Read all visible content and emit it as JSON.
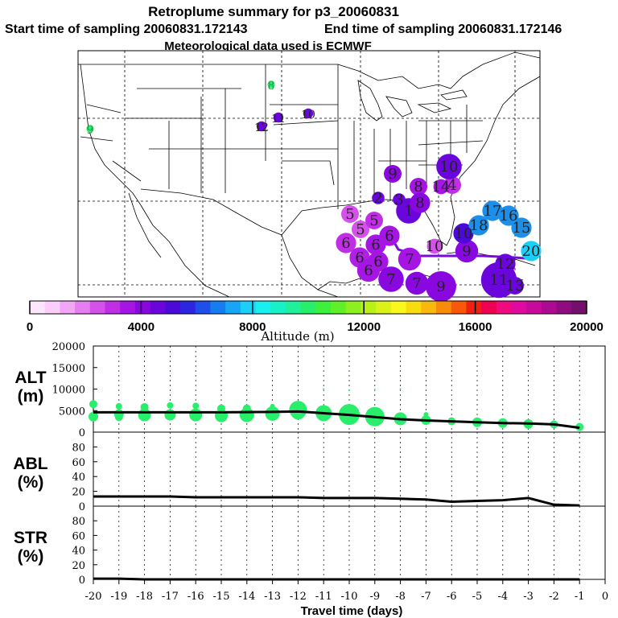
{
  "title": "Retroplume summary for p3_20060831",
  "subtitle_start": "Start time of sampling 20060831.172143",
  "subtitle_end": "End time of sampling 20060831.172146",
  "subtitle_met": "Meteorological data used is ECMWF",
  "colorbar": {
    "label": "Altitude (m)",
    "ticks": [
      "0",
      "4000",
      "8000",
      "12000",
      "16000",
      "20000"
    ],
    "colors": [
      "#ffe6ff",
      "#fccdfd",
      "#f2a6f6",
      "#e57ef0",
      "#d552ea",
      "#c02fe6",
      "#a515e3",
      "#8a08e0",
      "#6a06dc",
      "#4c0ad8",
      "#2d26e0",
      "#1e4fe8",
      "#167df0",
      "#17a6f5",
      "#1ccff7",
      "#18f0f0",
      "#18f0c8",
      "#20f09a",
      "#28ee6c",
      "#3cf03c",
      "#60f028",
      "#8cf020",
      "#b8f018",
      "#dcf01a",
      "#f8f81c",
      "#f8dc10",
      "#f8b80c",
      "#f88c08",
      "#f85808",
      "#f02010",
      "#f00050",
      "#f00a80",
      "#e00aa0",
      "#c80a9a",
      "#ac0a90",
      "#900a80",
      "#74106c"
    ]
  },
  "map": {
    "track_color": "#7a0ae0",
    "points": [
      {
        "label": "1",
        "value": 8,
        "color": "#6a06dc"
      },
      {
        "label": "2",
        "value": 3,
        "color": "#6a06dc"
      },
      {
        "label": "3",
        "value": 3,
        "color": "#6a06dc"
      },
      {
        "label": "4",
        "value": 5,
        "color": "#c02fe6"
      },
      {
        "label": "5",
        "value": 5,
        "color": "#d552ea"
      },
      {
        "label": "5",
        "value": 5,
        "color": "#d552ea"
      },
      {
        "label": "5",
        "value": 5,
        "color": "#c02fe6"
      },
      {
        "label": "6",
        "value": 6,
        "color": "#c02fe6"
      },
      {
        "label": "6",
        "value": 6,
        "color": "#a515e3"
      },
      {
        "label": "6",
        "value": 6,
        "color": "#a515e3"
      },
      {
        "label": "6",
        "value": 6,
        "color": "#b020e4"
      },
      {
        "label": "6",
        "value": 6,
        "color": "#a515e3"
      },
      {
        "label": "6",
        "value": 7,
        "color": "#a515e3"
      },
      {
        "label": "7",
        "value": 7,
        "color": "#8a08e0"
      },
      {
        "label": "7",
        "value": 7,
        "color": "#a515e3"
      },
      {
        "label": "7",
        "value": 8,
        "color": "#8a08e0"
      },
      {
        "label": "8",
        "value": 5,
        "color": "#a515e3"
      },
      {
        "label": "8",
        "value": 6,
        "color": "#8a08e0"
      },
      {
        "label": "9",
        "value": 10,
        "color": "#8a08e0"
      },
      {
        "label": "9",
        "value": 5,
        "color": "#8a08e0"
      },
      {
        "label": "9",
        "value": 7,
        "color": "#8a08e0"
      },
      {
        "label": "10",
        "value": 4,
        "color": "#d552ea"
      },
      {
        "label": "10",
        "value": 8,
        "color": "#6a06dc"
      },
      {
        "label": "10",
        "value": 6,
        "color": "#4c0ad8"
      },
      {
        "label": "11",
        "value": 12,
        "color": "#6a06dc"
      },
      {
        "label": "12",
        "value": 6,
        "color": "#6a06dc"
      },
      {
        "label": "13",
        "value": 5,
        "color": "#6a06dc"
      },
      {
        "label": "14",
        "value": 4,
        "color": "#a515e3"
      },
      {
        "label": "15",
        "value": 6,
        "color": "#1e8fe8"
      },
      {
        "label": "16",
        "value": 6,
        "color": "#1e8fe8"
      },
      {
        "label": "17",
        "value": 6,
        "color": "#1e8fe8"
      },
      {
        "label": "18",
        "value": 6,
        "color": "#1e8fe8"
      },
      {
        "label": "20",
        "value": 6,
        "color": "#1ccff7"
      },
      {
        "label": "12",
        "value": 2,
        "color": "#6a06dc"
      },
      {
        "label": "11",
        "value": 2,
        "color": "#6a06dc"
      },
      {
        "label": "10",
        "value": 2,
        "color": "#6a06dc"
      },
      {
        "label": "8",
        "value": 1,
        "color": "#28ee6c"
      },
      {
        "label": "9",
        "value": 1,
        "color": "#28ee6c"
      }
    ]
  },
  "chart_data": [
    {
      "type": "line",
      "panel": "ALT",
      "ylabel_lines": [
        "ALT",
        "(m)"
      ],
      "x": [
        -20,
        -19,
        -18,
        -17,
        -16,
        -15,
        -14,
        -13,
        -12,
        -11,
        -10,
        -9,
        -8,
        -7,
        -6,
        -5,
        -4,
        -3,
        -2,
        -1
      ],
      "y": [
        4600,
        4600,
        4600,
        4600,
        4600,
        4600,
        4650,
        4700,
        4800,
        4400,
        4000,
        3500,
        3000,
        2700,
        2500,
        2300,
        2100,
        2000,
        1800,
        1000
      ],
      "ylim": [
        0,
        20000
      ],
      "yticks": [
        "0",
        "5000",
        "10000",
        "15000",
        "20000"
      ],
      "marker_color": "#28ee6c",
      "markers": [
        {
          "x": -20,
          "y": 6500,
          "s": 5
        },
        {
          "x": -20,
          "y": 3600,
          "s": 6
        },
        {
          "x": -19,
          "y": 6000,
          "s": 4
        },
        {
          "x": -19,
          "y": 4200,
          "s": 6
        },
        {
          "x": -19,
          "y": 3500,
          "s": 5
        },
        {
          "x": -18,
          "y": 5800,
          "s": 5
        },
        {
          "x": -18,
          "y": 4000,
          "s": 8
        },
        {
          "x": -17,
          "y": 6200,
          "s": 4
        },
        {
          "x": -17,
          "y": 4000,
          "s": 7
        },
        {
          "x": -16,
          "y": 6100,
          "s": 4
        },
        {
          "x": -16,
          "y": 4000,
          "s": 8
        },
        {
          "x": -15,
          "y": 5500,
          "s": 5
        },
        {
          "x": -15,
          "y": 3800,
          "s": 8
        },
        {
          "x": -14,
          "y": 5500,
          "s": 5
        },
        {
          "x": -14,
          "y": 4000,
          "s": 9
        },
        {
          "x": -13,
          "y": 6000,
          "s": 3
        },
        {
          "x": -13,
          "y": 4300,
          "s": 9
        },
        {
          "x": -12,
          "y": 5200,
          "s": 11
        },
        {
          "x": -12,
          "y": 4600,
          "s": 9
        },
        {
          "x": -11,
          "y": 4400,
          "s": 10
        },
        {
          "x": -11,
          "y": 10000,
          "s": 1
        },
        {
          "x": -10,
          "y": 4100,
          "s": 13
        },
        {
          "x": -10,
          "y": 9800,
          "s": 1
        },
        {
          "x": -9,
          "y": 3600,
          "s": 12
        },
        {
          "x": -9,
          "y": 9900,
          "s": 1
        },
        {
          "x": -8,
          "y": 3100,
          "s": 8
        },
        {
          "x": -8,
          "y": 10000,
          "s": 1
        },
        {
          "x": -7,
          "y": 4100,
          "s": 3
        },
        {
          "x": -7,
          "y": 2800,
          "s": 6
        },
        {
          "x": -6,
          "y": 2500,
          "s": 5
        },
        {
          "x": -5,
          "y": 2300,
          "s": 6
        },
        {
          "x": -4,
          "y": 2100,
          "s": 6
        },
        {
          "x": -3,
          "y": 1900,
          "s": 6
        },
        {
          "x": -2,
          "y": 1800,
          "s": 5
        },
        {
          "x": -1,
          "y": 1200,
          "s": 5
        }
      ]
    },
    {
      "type": "line",
      "panel": "ABL",
      "ylabel_lines": [
        "ABL",
        "(%)"
      ],
      "x": [
        -20,
        -19,
        -18,
        -17,
        -16,
        -15,
        -14,
        -13,
        -12,
        -11,
        -10,
        -9,
        -8,
        -7,
        -6,
        -5,
        -4,
        -3,
        -2,
        -1
      ],
      "y": [
        13,
        13,
        13,
        13,
        12,
        12,
        12,
        12,
        12,
        11,
        11,
        11,
        10,
        9,
        6,
        7,
        8,
        11,
        2,
        1
      ],
      "ylim": [
        0,
        100
      ],
      "yticks": [
        "0",
        "20",
        "40",
        "60",
        "80"
      ]
    },
    {
      "type": "line",
      "panel": "STR",
      "ylabel_lines": [
        "STR",
        "(%)"
      ],
      "x": [
        -20,
        -19,
        -18,
        -17,
        -16,
        -15,
        -14,
        -13,
        -12,
        -11,
        -10,
        -9,
        -8,
        -7,
        -6,
        -5,
        -4,
        -3,
        -2,
        -1
      ],
      "y": [
        1,
        1,
        0,
        0,
        0,
        0,
        0,
        0,
        0,
        0,
        0,
        0,
        0,
        0,
        0,
        0,
        0,
        0,
        0,
        0
      ],
      "ylim": [
        0,
        100
      ],
      "yticks": [
        "0",
        "20",
        "40",
        "60",
        "80"
      ]
    }
  ],
  "xaxis": {
    "label": "Travel time (days)",
    "ticks": [
      "-20",
      "-19",
      "-18",
      "-17",
      "-16",
      "-15",
      "-14",
      "-13",
      "-12",
      "-11",
      "-10",
      "-9",
      "-8",
      "-7",
      "-6",
      "-5",
      "-4",
      "-3",
      "-2",
      "-1",
      "0"
    ]
  }
}
